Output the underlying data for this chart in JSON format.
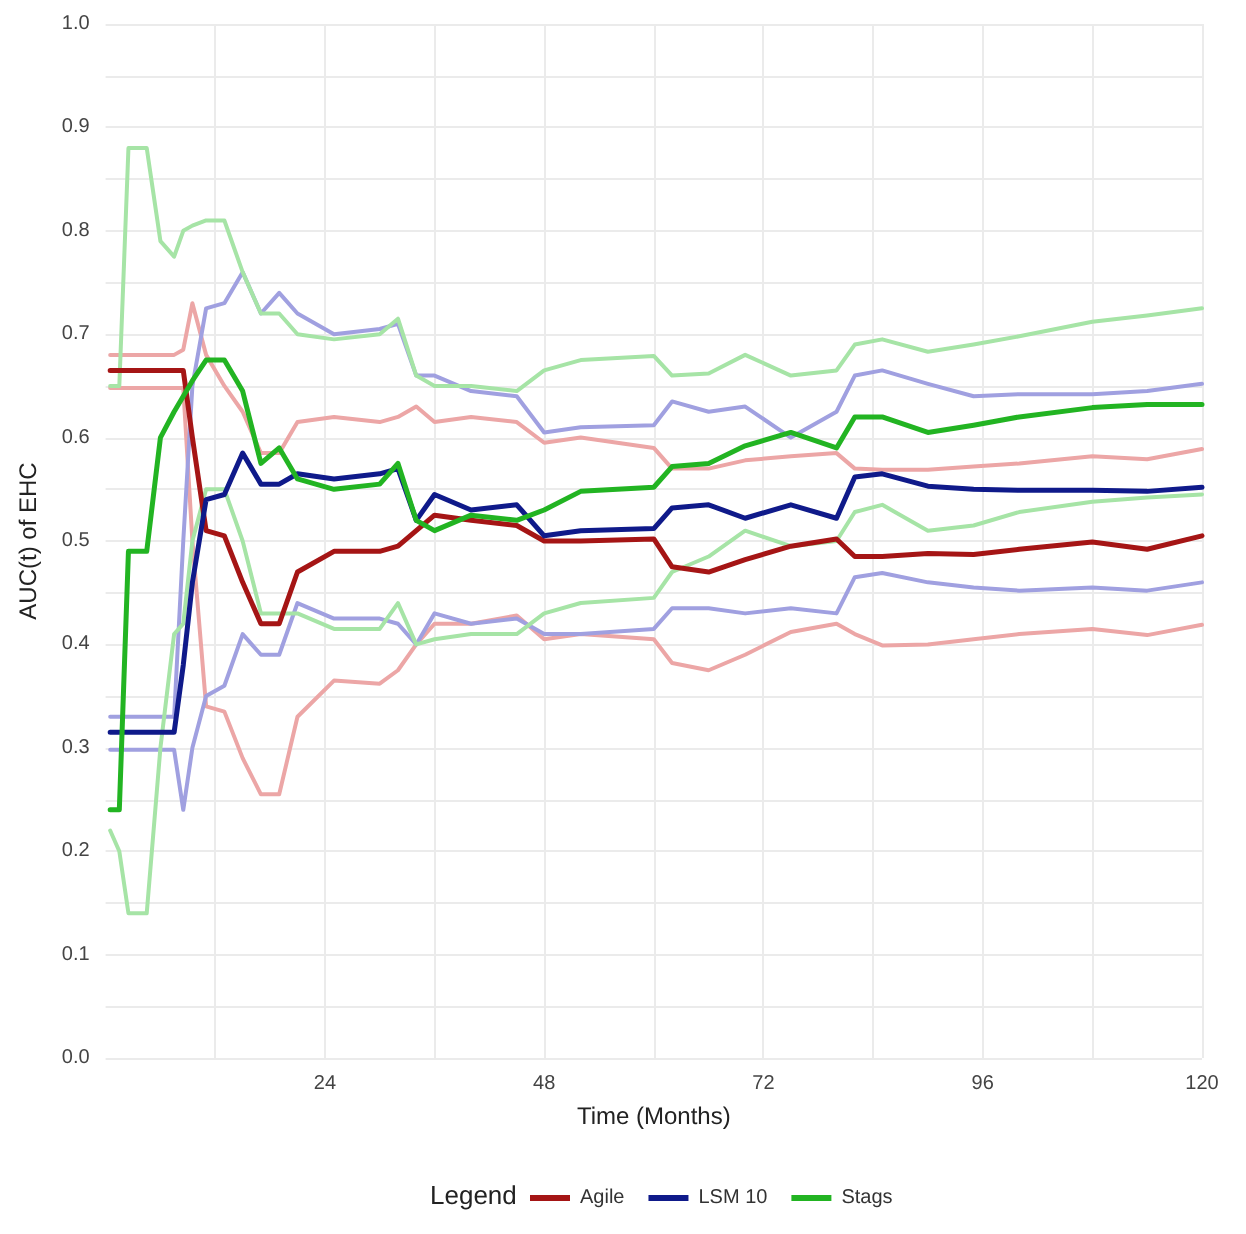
{
  "chart_data": {
    "type": "line",
    "xlabel": "Time (Months)",
    "ylabel": "AUC(t) of EHC",
    "legend_title": "Legend",
    "legend": "bottom",
    "grid": true,
    "marker": "none",
    "line_style": "solid",
    "x": [
      0.5,
      1.5,
      2.5,
      4.5,
      6,
      7.5,
      8.5,
      9.5,
      11,
      13,
      15,
      17,
      19,
      21,
      25,
      30,
      32,
      34,
      36,
      40,
      45,
      48,
      52,
      60,
      62,
      66,
      70,
      75,
      80,
      82,
      85,
      90,
      95,
      100,
      108,
      114,
      120
    ],
    "xlim": [
      0,
      120
    ],
    "xticks": [
      {
        "value": 12,
        "label": null
      },
      24,
      {
        "value": 36,
        "label": null
      },
      48,
      {
        "value": 60,
        "label": null
      },
      72,
      {
        "value": 84,
        "label": null
      },
      96,
      {
        "value": 108,
        "label": null
      },
      120
    ],
    "ylim": [
      0,
      1
    ],
    "yticks": [
      {
        "value": 0,
        "label": "0.0"
      },
      {
        "value": 0.05,
        "label": null
      },
      0.1,
      {
        "value": 0.15,
        "label": null
      },
      0.2,
      {
        "value": 0.25,
        "label": null
      },
      0.3,
      {
        "value": 0.35,
        "label": null
      },
      0.4,
      {
        "value": 0.45,
        "label": null
      },
      0.5,
      {
        "value": 0.55,
        "label": null
      },
      0.6,
      {
        "value": 0.65,
        "label": null
      },
      0.7,
      {
        "value": 0.75,
        "label": null
      },
      0.8,
      {
        "value": 0.85,
        "label": null
      },
      0.9,
      {
        "value": 0.95,
        "label": null
      },
      {
        "value": 1,
        "label": "1.0"
      }
    ],
    "series": [
      {
        "color": "#eca6a6",
        "values": [
          0.68,
          0.68,
          0.68,
          0.68,
          0.68,
          0.68,
          0.685,
          0.73,
          0.68,
          0.65,
          0.625,
          0.585,
          0.585,
          0.615,
          0.62,
          0.615,
          0.62,
          0.63,
          0.615,
          0.62,
          0.615,
          0.595,
          0.6,
          0.59,
          0.57,
          0.57,
          0.578,
          0.582,
          0.585,
          0.57,
          0.569,
          0.569,
          0.572,
          0.575,
          0.582,
          0.579,
          0.589
        ]
      },
      {
        "color": "#eca6a6",
        "values": [
          0.648,
          0.648,
          0.648,
          0.648,
          0.648,
          0.648,
          0.648,
          0.5,
          0.34,
          0.335,
          0.29,
          0.255,
          0.255,
          0.33,
          0.365,
          0.362,
          0.375,
          0.4,
          0.42,
          0.42,
          0.428,
          0.405,
          0.41,
          0.405,
          0.382,
          0.375,
          0.39,
          0.412,
          0.42,
          0.41,
          0.399,
          0.4,
          0.405,
          0.41,
          0.415,
          0.409,
          0.419
        ]
      },
      {
        "color": "#a0a0e0",
        "values": [
          0.33,
          0.33,
          0.33,
          0.33,
          0.33,
          0.33,
          0.5,
          0.65,
          0.725,
          0.73,
          0.76,
          0.72,
          0.74,
          0.72,
          0.7,
          0.705,
          0.71,
          0.66,
          0.66,
          0.645,
          0.64,
          0.605,
          0.61,
          0.612,
          0.635,
          0.625,
          0.63,
          0.6,
          0.625,
          0.66,
          0.665,
          0.652,
          0.64,
          0.642,
          0.642,
          0.645,
          0.652
        ]
      },
      {
        "color": "#a0a0e0",
        "values": [
          0.298,
          0.298,
          0.298,
          0.298,
          0.298,
          0.298,
          0.24,
          0.3,
          0.35,
          0.36,
          0.41,
          0.39,
          0.39,
          0.44,
          0.425,
          0.425,
          0.42,
          0.4,
          0.43,
          0.42,
          0.425,
          0.41,
          0.41,
          0.415,
          0.435,
          0.435,
          0.43,
          0.435,
          0.43,
          0.465,
          0.469,
          0.46,
          0.455,
          0.452,
          0.455,
          0.452,
          0.46
        ]
      },
      {
        "color": "#a6e4a6",
        "values": [
          0.65,
          0.65,
          0.88,
          0.88,
          0.79,
          0.775,
          0.8,
          0.805,
          0.81,
          0.81,
          0.76,
          0.72,
          0.72,
          0.7,
          0.695,
          0.7,
          0.715,
          0.66,
          0.65,
          0.65,
          0.645,
          0.665,
          0.675,
          0.679,
          0.66,
          0.662,
          0.68,
          0.66,
          0.665,
          0.69,
          0.695,
          0.683,
          0.69,
          0.698,
          0.712,
          0.718,
          0.725
        ]
      },
      {
        "color": "#a6e4a6",
        "values": [
          0.22,
          0.2,
          0.14,
          0.14,
          0.3,
          0.41,
          0.42,
          0.5,
          0.55,
          0.55,
          0.5,
          0.43,
          0.43,
          0.43,
          0.415,
          0.415,
          0.44,
          0.4,
          0.405,
          0.41,
          0.41,
          0.43,
          0.44,
          0.445,
          0.47,
          0.485,
          0.51,
          0.495,
          0.5,
          0.528,
          0.535,
          0.51,
          0.515,
          0.528,
          0.538,
          0.542,
          0.545
        ]
      },
      {
        "name": "Agile",
        "color": "#a51515",
        "values": [
          0.665,
          0.665,
          0.665,
          0.665,
          0.665,
          0.665,
          0.665,
          0.6,
          0.51,
          0.505,
          0.46,
          0.42,
          0.42,
          0.47,
          0.49,
          0.49,
          0.495,
          0.51,
          0.525,
          0.52,
          0.515,
          0.5,
          0.5,
          0.502,
          0.475,
          0.47,
          0.482,
          0.495,
          0.502,
          0.485,
          0.485,
          0.488,
          0.487,
          0.492,
          0.499,
          0.492,
          0.505
        ]
      },
      {
        "name": "LSM 10",
        "color": "#0f1a8a",
        "values": [
          0.315,
          0.315,
          0.315,
          0.315,
          0.315,
          0.315,
          0.38,
          0.46,
          0.54,
          0.545,
          0.585,
          0.555,
          0.555,
          0.565,
          0.56,
          0.565,
          0.57,
          0.52,
          0.545,
          0.53,
          0.535,
          0.505,
          0.51,
          0.512,
          0.532,
          0.535,
          0.522,
          0.535,
          0.522,
          0.562,
          0.565,
          0.553,
          0.55,
          0.549,
          0.549,
          0.548,
          0.552
        ]
      },
      {
        "name": "Stags",
        "color": "#22b422",
        "values": [
          0.24,
          0.24,
          0.49,
          0.49,
          0.6,
          0.625,
          0.64,
          0.655,
          0.675,
          0.675,
          0.645,
          0.575,
          0.59,
          0.56,
          0.55,
          0.555,
          0.575,
          0.52,
          0.51,
          0.525,
          0.52,
          0.53,
          0.548,
          0.552,
          0.572,
          0.575,
          0.592,
          0.605,
          0.59,
          0.62,
          0.62,
          0.605,
          0.612,
          0.62,
          0.629,
          0.632,
          0.632
        ]
      }
    ]
  }
}
